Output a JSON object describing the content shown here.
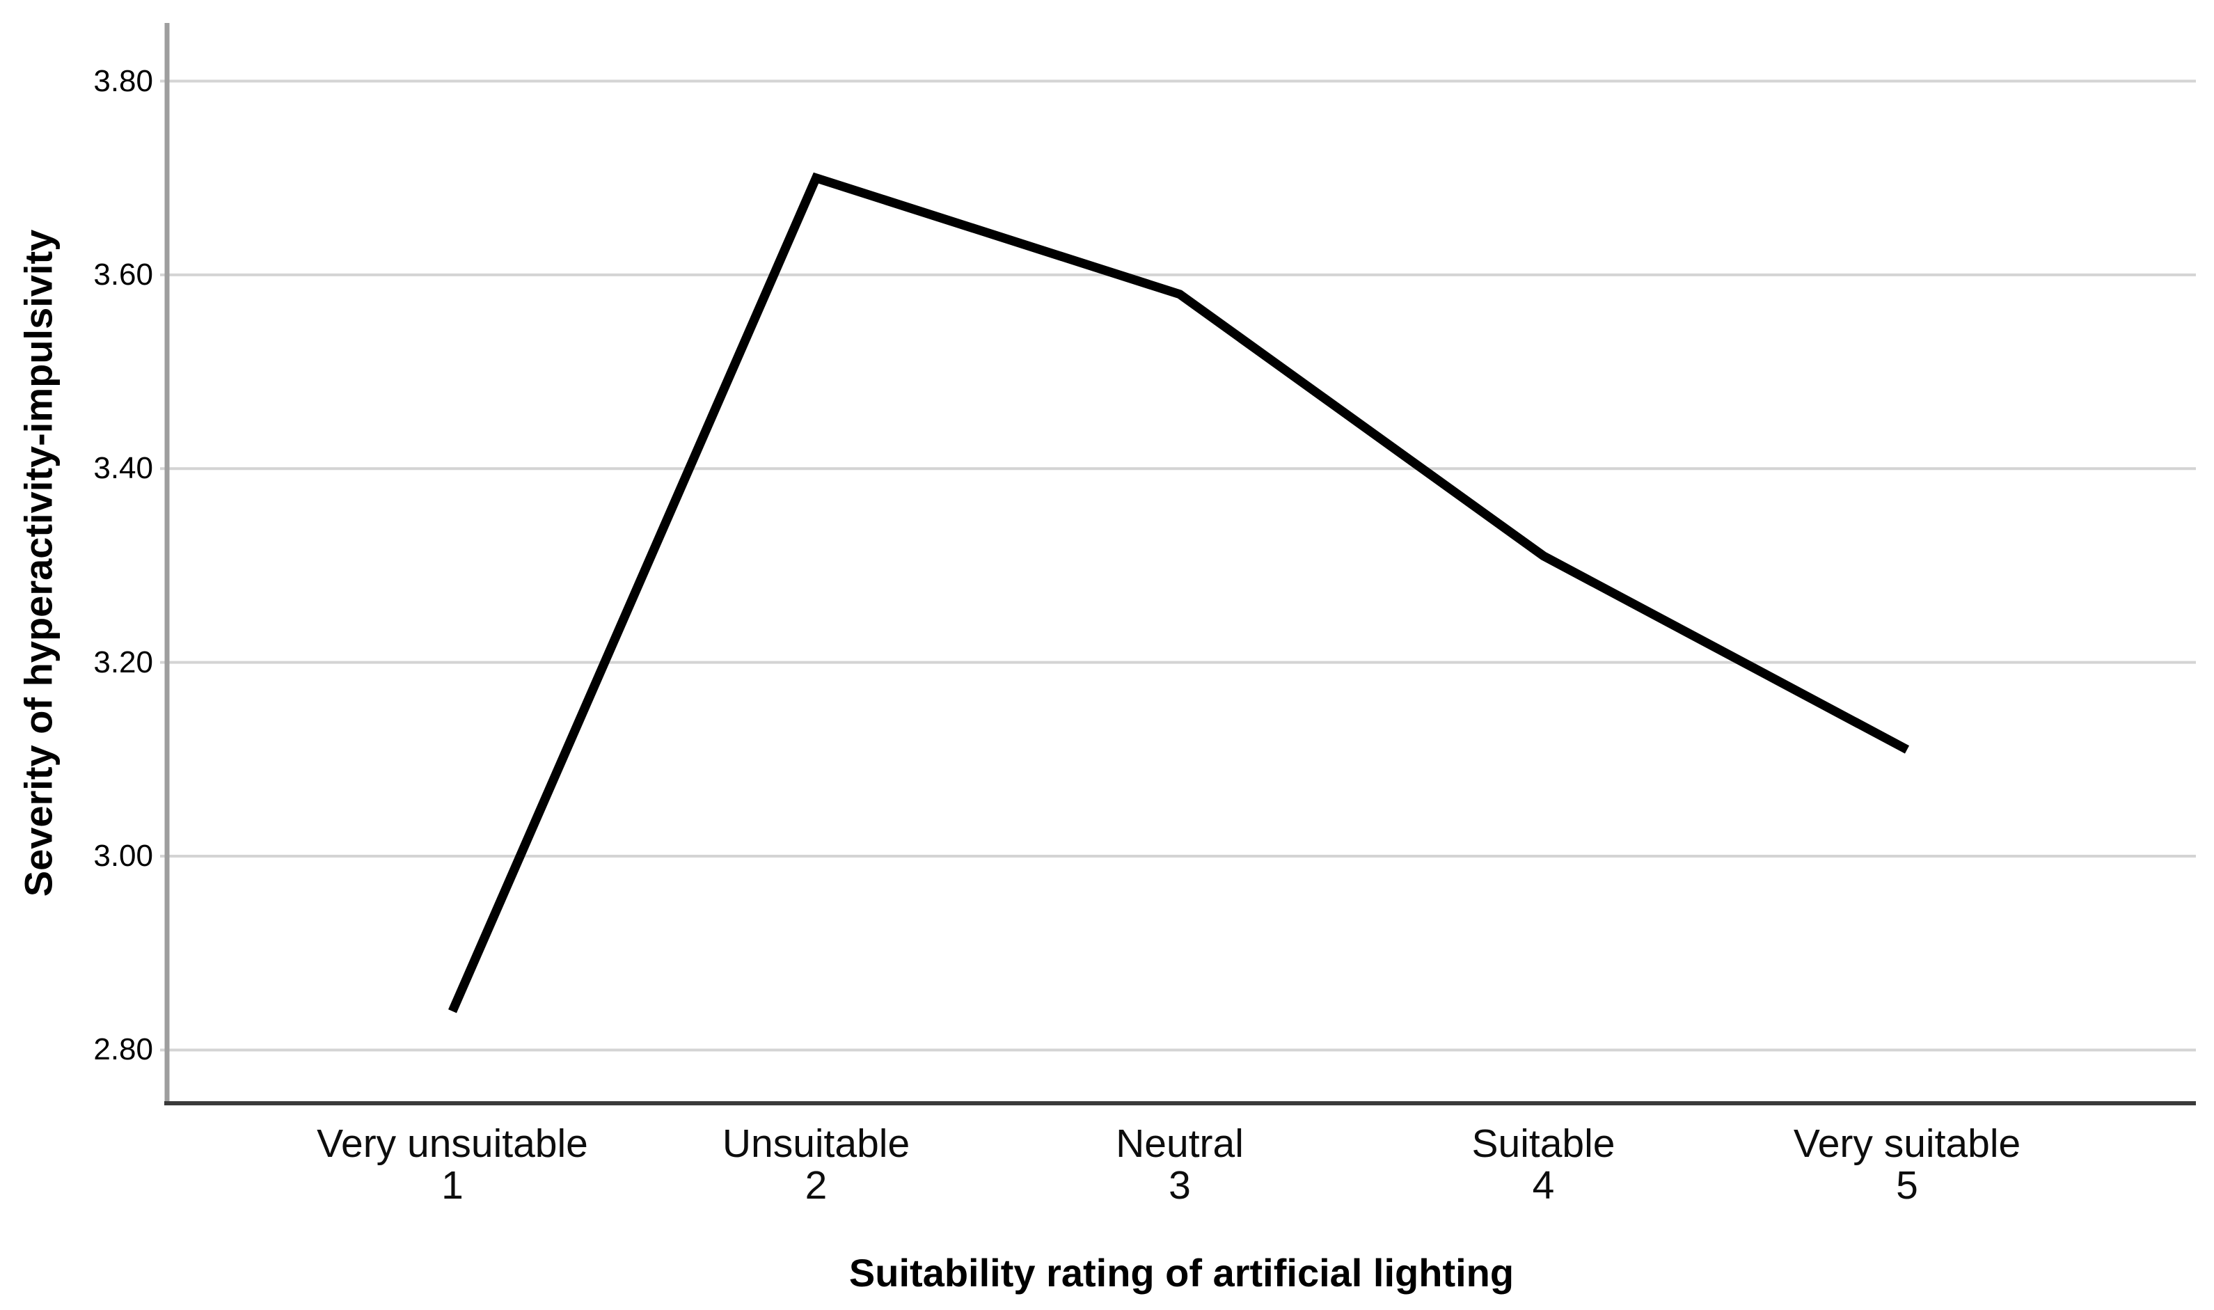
{
  "chart_data": {
    "type": "line",
    "title": "",
    "xlabel": "Suitability rating of artificial lighting",
    "ylabel": "Severity of hyperactivity-impulsivity",
    "categories": [
      "Very unsuitable",
      "Unsuitable",
      "Neutral",
      "Suitable",
      "Very suitable"
    ],
    "category_codes": [
      "1",
      "2",
      "3",
      "4",
      "5"
    ],
    "series": [
      {
        "name": "Severity of hyperactivity-impulsivity",
        "values": [
          2.84,
          3.7,
          3.58,
          3.31,
          3.11
        ]
      }
    ],
    "yticks": [
      2.8,
      3.0,
      3.2,
      3.4,
      3.6,
      3.8
    ],
    "ytick_labels": [
      "2.80",
      "3.00",
      "3.20",
      "3.40",
      "3.60",
      "3.80"
    ],
    "ylim": [
      2.745,
      3.86
    ],
    "grid": "horizontal",
    "legend_position": "none",
    "colors": {
      "line": "#000000",
      "grid": "#d4d4d4",
      "y_axis": "#9e9e9e",
      "x_axis": "#3a3a3a",
      "text": "#000000",
      "background": "#ffffff"
    }
  }
}
